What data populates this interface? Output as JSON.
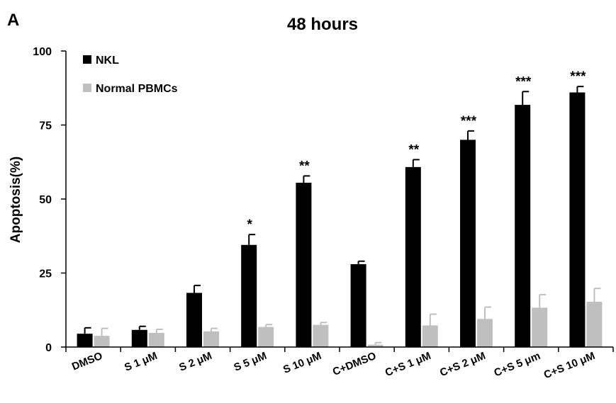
{
  "panel_label": "A",
  "chart_data": {
    "type": "bar",
    "title": "48 hours",
    "xlabel": "",
    "ylabel": "Apoptosis(%)",
    "ylim": [
      0,
      100
    ],
    "yticks": [
      "0",
      "25",
      "50",
      "75",
      "100"
    ],
    "grid": false,
    "legend_position": "top-left",
    "categories": [
      "DMSO",
      "S 1 μM",
      "S 2 μM",
      "S 5 μM",
      "S 10 μM",
      "C+DMSO",
      "C+S 1 μM",
      "C+S 2 μM",
      "C+S 5 μm",
      "C+S 10 μM"
    ],
    "series": [
      {
        "name": "NKL",
        "color": "#000000",
        "values": [
          4.5,
          5.8,
          18.3,
          34.5,
          55.5,
          28,
          60.8,
          70,
          81.8,
          86
        ],
        "errors": [
          2.0,
          1.2,
          2.5,
          3.5,
          2.3,
          1.0,
          2.5,
          3.0,
          4.5,
          2.0
        ]
      },
      {
        "name": "Normal PBMCs",
        "color": "#bfbfbf",
        "values": [
          3.8,
          4.8,
          5.3,
          6.8,
          7.5,
          0.8,
          7.3,
          9.5,
          13.3,
          15.3
        ],
        "errors": [
          2.5,
          1.2,
          1.0,
          0.8,
          0.8,
          0.7,
          3.8,
          4.0,
          4.4,
          4.5
        ]
      }
    ],
    "significance": [
      "",
      "",
      "",
      "*",
      "**",
      "",
      "**",
      "***",
      "***",
      "***"
    ]
  }
}
